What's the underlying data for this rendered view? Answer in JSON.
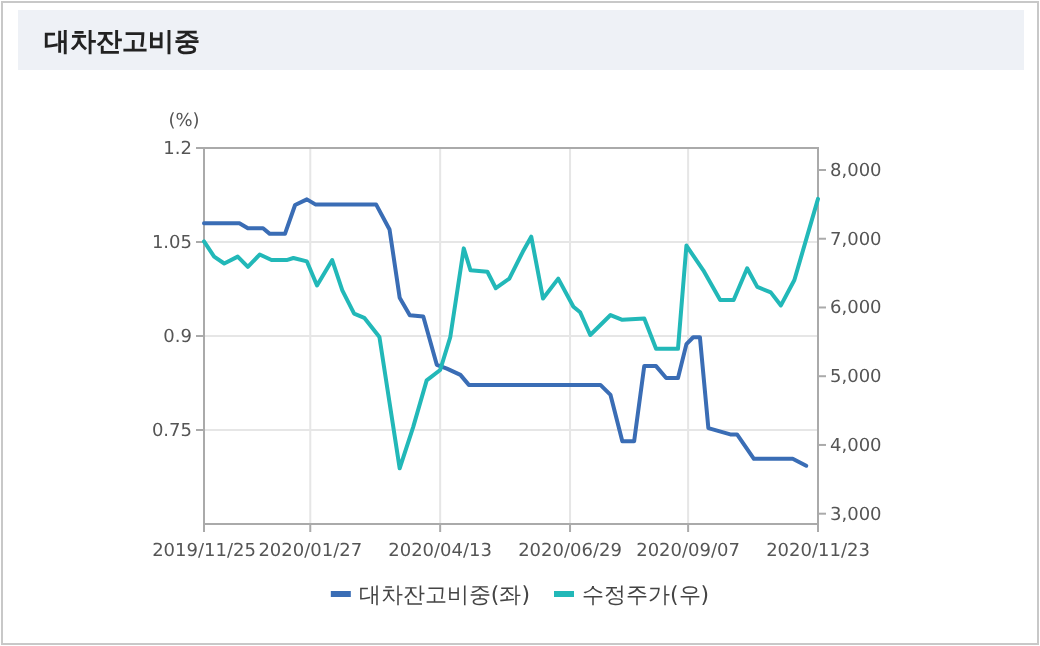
{
  "chart_data": {
    "type": "line",
    "title": "대차잔고비중",
    "ylabel": "(%)",
    "legend": "bottom",
    "grid": true,
    "xlim": [
      "2019-11-25",
      "2020-11-23"
    ],
    "xticks": [
      {
        "value": "2019-11-25",
        "label": "2019/11/25"
      },
      {
        "value": "2020-01-27",
        "label": "2020/01/27"
      },
      {
        "value": "2020-04-13",
        "label": "2020/04/13"
      },
      {
        "value": "2020-06-29",
        "label": "2020/06/29"
      },
      {
        "value": "2020-09-07",
        "label": "2020/09/07"
      },
      {
        "value": "2020-11-23",
        "label": "2020/11/23"
      }
    ],
    "ylim": [
      0.6,
      1.2
    ],
    "yticks": [
      0.75,
      0.9,
      1.05,
      1.2
    ],
    "y2lim": [
      2850,
      8320
    ],
    "y2ticks": [
      {
        "value": 3000,
        "label": "3,000"
      },
      {
        "value": 4000,
        "label": "4,000"
      },
      {
        "value": 5000,
        "label": "5,000"
      },
      {
        "value": 6000,
        "label": "6,000"
      },
      {
        "value": 7000,
        "label": "7,000"
      },
      {
        "value": 8000,
        "label": "8,000"
      }
    ],
    "series": [
      {
        "name": "대차잔고비중(좌)",
        "color": "#3a6db5",
        "x": [
          "2019-11-25",
          "2019-12-16",
          "2019-12-21",
          "2019-12-30",
          "2020-01-03",
          "2020-01-12",
          "2020-01-18",
          "2020-01-25",
          "2020-01-30",
          "2020-03-06",
          "2020-03-14",
          "2020-03-20",
          "2020-03-26",
          "2020-04-03",
          "2020-04-11",
          "2020-04-17",
          "2020-04-25",
          "2020-04-30",
          "2020-07-17",
          "2020-07-23",
          "2020-07-30",
          "2020-08-06",
          "2020-08-12",
          "2020-08-19",
          "2020-08-25",
          "2020-09-01",
          "2020-09-06",
          "2020-09-10",
          "2020-09-14",
          "2020-09-19",
          "2020-10-02",
          "2020-10-06",
          "2020-10-16",
          "2020-11-08",
          "2020-11-16"
        ],
        "values": [
          1.08,
          1.08,
          1.072,
          1.072,
          1.063,
          1.063,
          1.109,
          1.118,
          1.11,
          1.11,
          1.07,
          0.961,
          0.933,
          0.931,
          0.854,
          0.848,
          0.838,
          0.822,
          0.822,
          0.806,
          0.732,
          0.732,
          0.852,
          0.852,
          0.833,
          0.833,
          0.887,
          0.898,
          0.898,
          0.753,
          0.743,
          0.743,
          0.704,
          0.704,
          0.693
        ]
      },
      {
        "name": "수정주가(우)",
        "color": "#22b8b8",
        "axis": "y2",
        "x": [
          "2019-11-25",
          "2019-12-01",
          "2019-12-07",
          "2019-12-15",
          "2019-12-21",
          "2019-12-28",
          "2020-01-04",
          "2020-01-13",
          "2020-01-17",
          "2020-01-25",
          "2020-01-31",
          "2020-02-09",
          "2020-02-15",
          "2020-02-22",
          "2020-02-28",
          "2020-03-08",
          "2020-03-20",
          "2020-03-28",
          "2020-04-05",
          "2020-04-13",
          "2020-04-19",
          "2020-04-27",
          "2020-05-01",
          "2020-05-11",
          "2020-05-16",
          "2020-05-24",
          "2020-06-01",
          "2020-06-06",
          "2020-06-13",
          "2020-06-22",
          "2020-07-01",
          "2020-07-05",
          "2020-07-11",
          "2020-07-23",
          "2020-07-30",
          "2020-08-12",
          "2020-08-19",
          "2020-09-01",
          "2020-09-06",
          "2020-09-16",
          "2020-09-26",
          "2020-10-04",
          "2020-10-12",
          "2020-10-18",
          "2020-10-26",
          "2020-11-01",
          "2020-11-09",
          "2020-11-23"
        ],
        "values": [
          6960,
          6740,
          6640,
          6740,
          6590,
          6770,
          6690,
          6690,
          6720,
          6670,
          6320,
          6690,
          6250,
          5910,
          5850,
          5570,
          3660,
          4260,
          4940,
          5090,
          5570,
          6860,
          6540,
          6520,
          6280,
          6420,
          6810,
          7030,
          6130,
          6420,
          6010,
          5930,
          5600,
          5890,
          5820,
          5840,
          5400,
          5400,
          6900,
          6540,
          6110,
          6110,
          6570,
          6300,
          6220,
          6030,
          6400,
          7580
        ]
      }
    ]
  }
}
